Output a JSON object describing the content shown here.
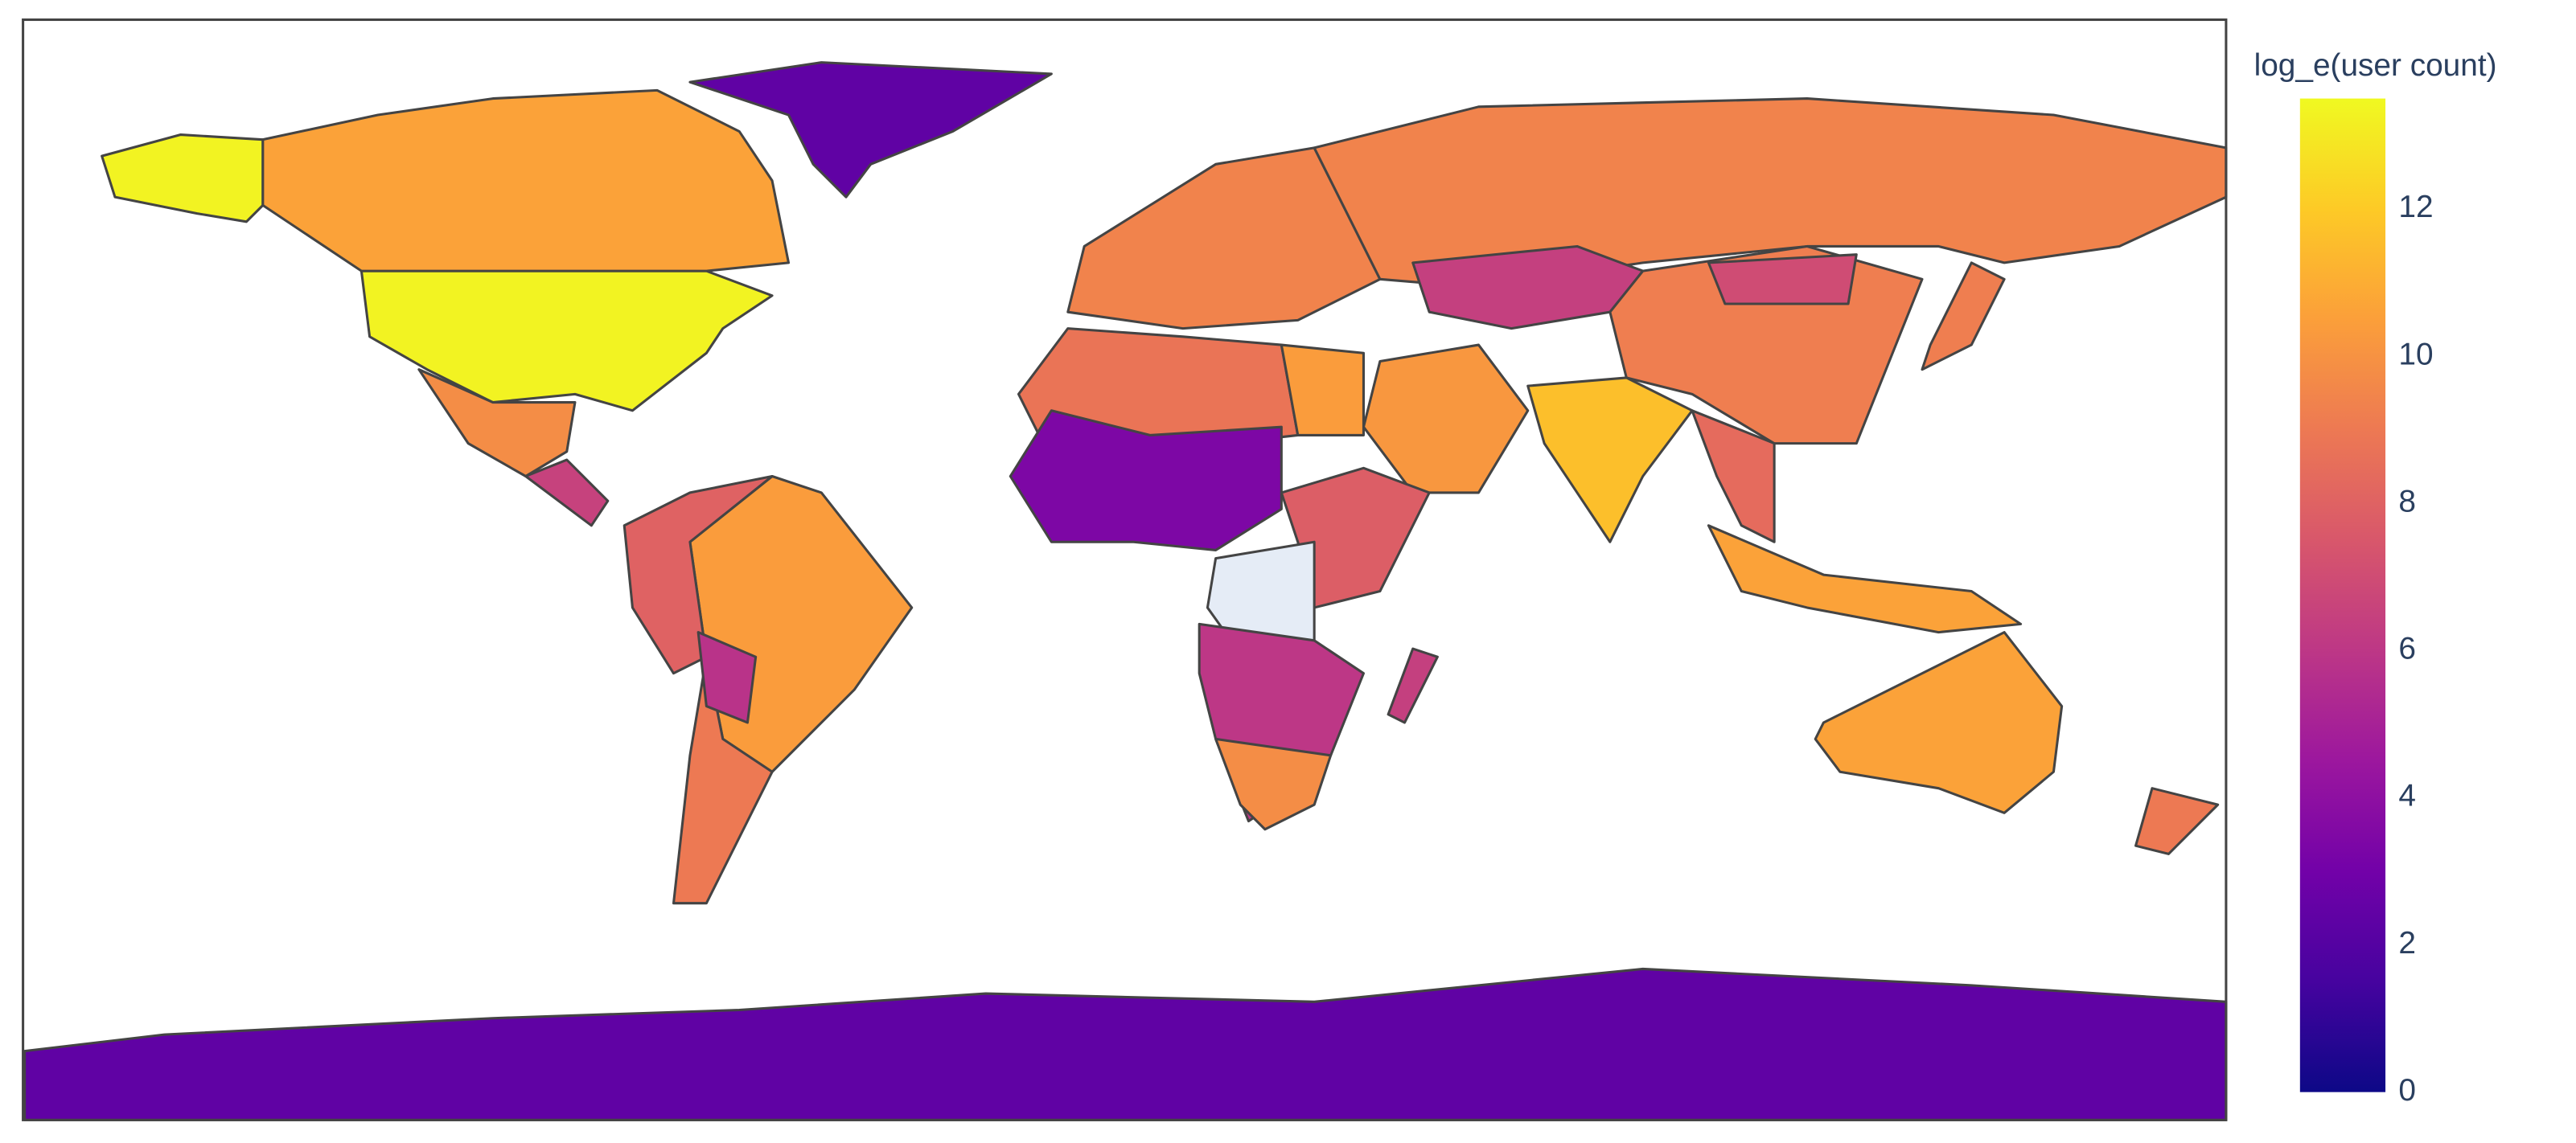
{
  "chart_data": {
    "type": "choropleth",
    "colorbar_title": "log_e(user count)",
    "colorscale": [
      "#0d0887",
      "#46039f",
      "#7201a8",
      "#9c179e",
      "#bd3786",
      "#d8576b",
      "#ed7953",
      "#fb9f3a",
      "#fdca26",
      "#f0f921"
    ],
    "nan_color": "#e5ecf6",
    "border_color": "#444444",
    "zlim": [
      0,
      13.5
    ],
    "zticks": [
      0,
      2,
      4,
      6,
      8,
      10,
      12
    ],
    "values": [
      13.3,
      10.6,
      9.8,
      6.5,
      2.4,
      10.4,
      8.0,
      9.0,
      5.8,
      9.4,
      9.4,
      6.4,
      9.2,
      7.0,
      10.2,
      11.6,
      8.4,
      10.6,
      8.8,
      10.4,
      3.4,
      7.8,
      null,
      6.0,
      9.8,
      6.4,
      10.6,
      9.0,
      2.4,
      9.2
    ]
  }
}
